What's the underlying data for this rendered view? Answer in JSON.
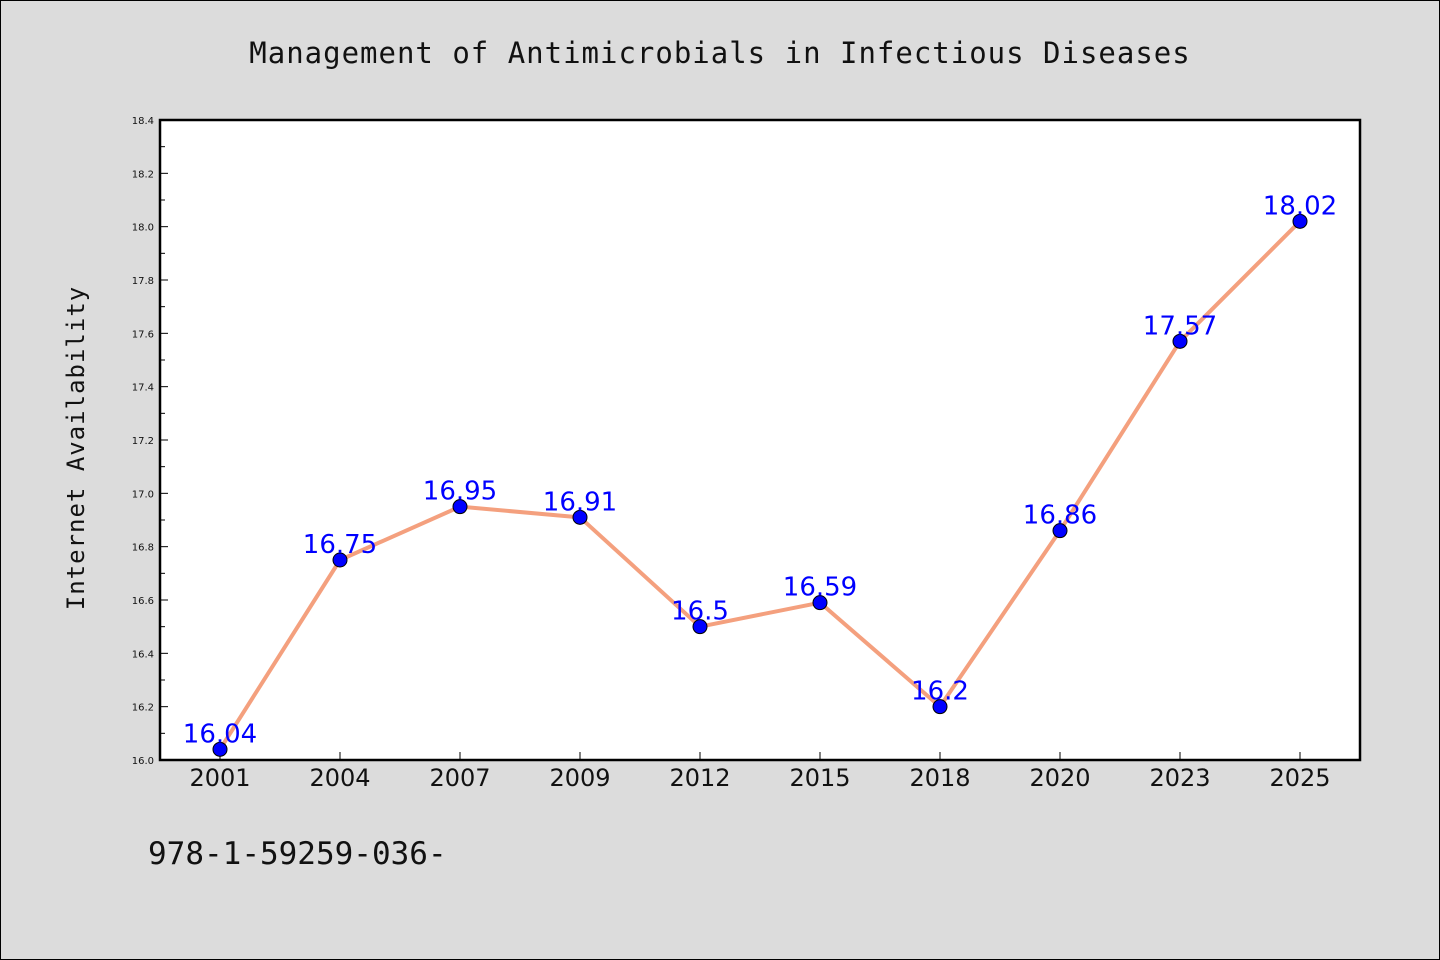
{
  "chart_data": {
    "type": "line",
    "title": "Management of Antimicrobials in Infectious Diseases",
    "ylabel": "Internet Availability",
    "xlabel": "",
    "categories": [
      "2001",
      "2004",
      "2007",
      "2009",
      "2012",
      "2015",
      "2018",
      "2020",
      "2023",
      "2025"
    ],
    "values": [
      16.04,
      16.75,
      16.95,
      16.91,
      16.5,
      16.59,
      16.2,
      16.86,
      17.57,
      18.02
    ],
    "data_labels": [
      "16.04",
      "16.75",
      "16.95",
      "16.91",
      "16.5",
      "16.59",
      "16.2",
      "16.86",
      "17.57",
      "18.02"
    ],
    "ylim": [
      16.0,
      18.4
    ],
    "yticks": [
      "16.0",
      "16.2",
      "16.4",
      "16.6",
      "16.8",
      "17.0",
      "17.2",
      "17.4",
      "17.6",
      "17.8",
      "18.0",
      "18.2",
      "18.4"
    ],
    "grid": false,
    "line_color": "#f4a07e",
    "marker_color": "#0000ff",
    "label_color": "#0000ff"
  },
  "footer": {
    "text": "978-1-59259-036-"
  }
}
